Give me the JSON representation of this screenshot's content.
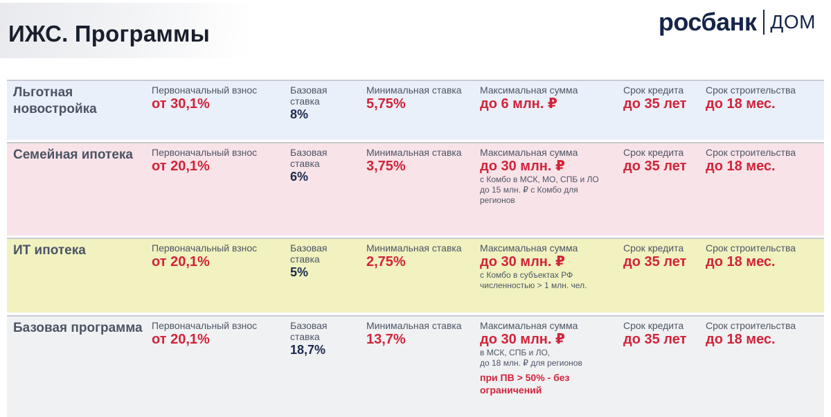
{
  "header": {
    "title": "ИЖС. Программы",
    "logo_main": "росбанк",
    "logo_sub": "ДОМ"
  },
  "labels": {
    "down_payment": "Первоначальный взнос",
    "base_rate": "Базовая ставка",
    "min_rate": "Минимальная ставка",
    "max_sum": "Максимальная сумма",
    "term": "Срок кредита",
    "build_term": "Срок строительства"
  },
  "programs": [
    {
      "name": "Льготная новостройка",
      "down_payment": "от 30,1%",
      "base_rate": "8%",
      "min_rate": "5,75%",
      "max_sum": "до 6 млн. ₽",
      "max_notes": [],
      "max_note_highlight": "",
      "term": "до 35 лет",
      "build_term": "до 18 мес."
    },
    {
      "name": "Семейная ипотека",
      "down_payment": "от 20,1%",
      "base_rate": "6%",
      "min_rate": "3,75%",
      "max_sum": "до 30 млн. ₽",
      "max_notes": [
        "с Комбо в МСК, МО, СПБ и ЛО",
        "до 15 млн. ₽ с Комбо для регионов"
      ],
      "max_note_highlight": "",
      "term": "до 35 лет",
      "build_term": "до 18 мес."
    },
    {
      "name": "ИТ ипотека",
      "down_payment": "от 20,1%",
      "base_rate": "5%",
      "min_rate": "2,75%",
      "max_sum": "до 30 млн. ₽",
      "max_notes": [
        "с Комбо в субъектах РФ численностью > 1 млн. чел."
      ],
      "max_note_highlight": "",
      "term": "до 35 лет",
      "build_term": "до 18 мес."
    },
    {
      "name": "Базовая программа",
      "down_payment": "от 20,1%",
      "base_rate": "18,7%",
      "min_rate": "13,7%",
      "max_sum": "до 30 млн. ₽",
      "max_notes": [
        "в МСК, СПБ и ЛО,",
        "до 18 млн. ₽ для регионов"
      ],
      "max_note_highlight": "при ПВ > 50% - без ограничений",
      "term": "до 35 лет",
      "build_term": "до 18 мес."
    }
  ],
  "colors": {
    "accent_red": "#d2233a",
    "brand_navy": "#15254a",
    "row_backgrounds": [
      "#eaf0fa",
      "#f8e3e8",
      "#f1f2bf",
      "#f0f1f3"
    ]
  }
}
